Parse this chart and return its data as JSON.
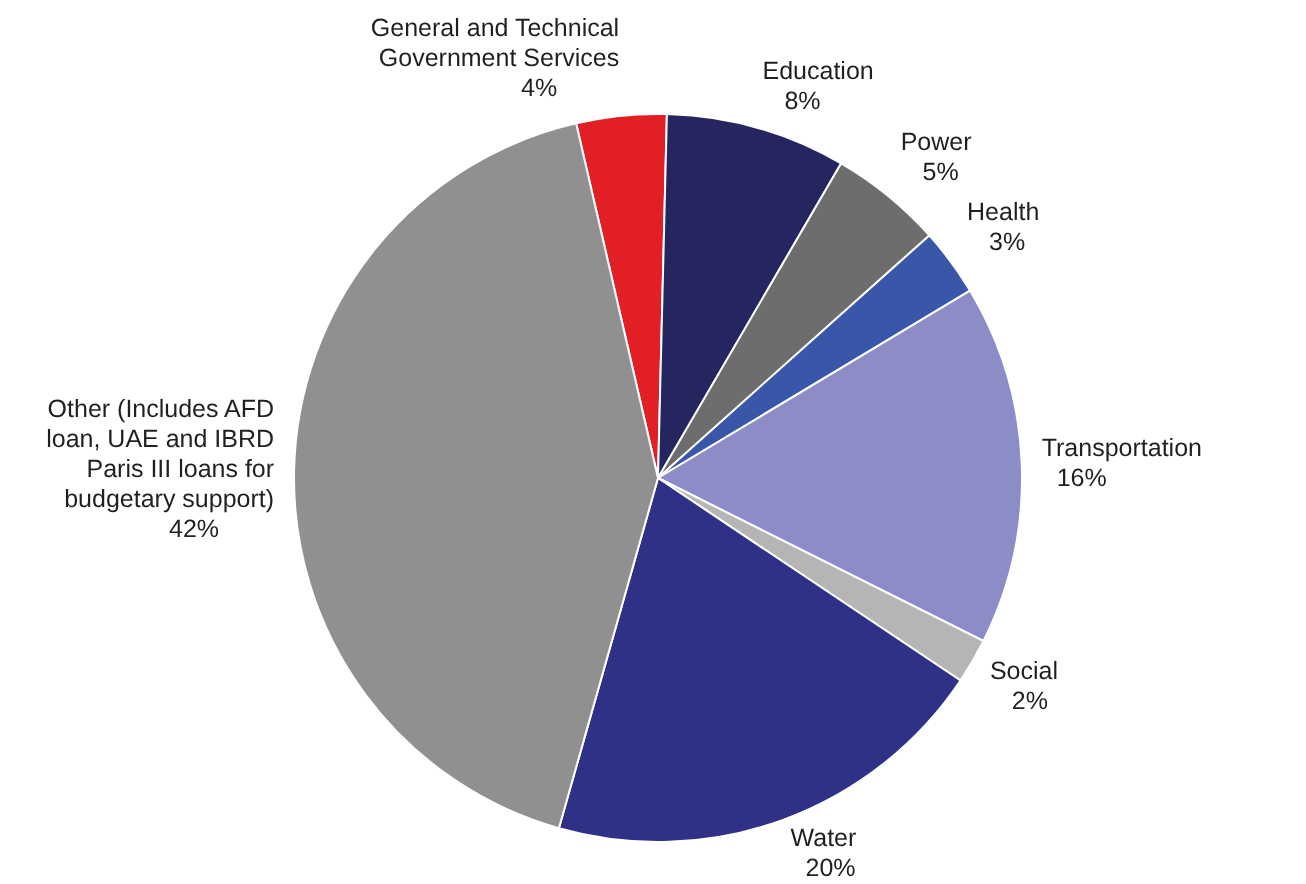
{
  "chart_data": {
    "type": "pie",
    "categories": [
      "General and Technical Government Services",
      "Education",
      "Power",
      "Health",
      "Transportation",
      "Social",
      "Water",
      "Other (Includes AFD loan, UAE and IBRD Paris III loans for budgetary support)"
    ],
    "values": [
      4,
      8,
      5,
      3,
      16,
      2,
      20,
      42
    ],
    "value_labels": [
      "4%",
      "8%",
      "5%",
      "3%",
      "16%",
      "2%",
      "20%",
      "42%"
    ],
    "colors": [
      "#e31f26",
      "#25255f",
      "#6d6d6d",
      "#3a56a8",
      "#8c8cc6",
      "#b5b5b5",
      "#2e3185",
      "#909090"
    ],
    "legend": false
  }
}
